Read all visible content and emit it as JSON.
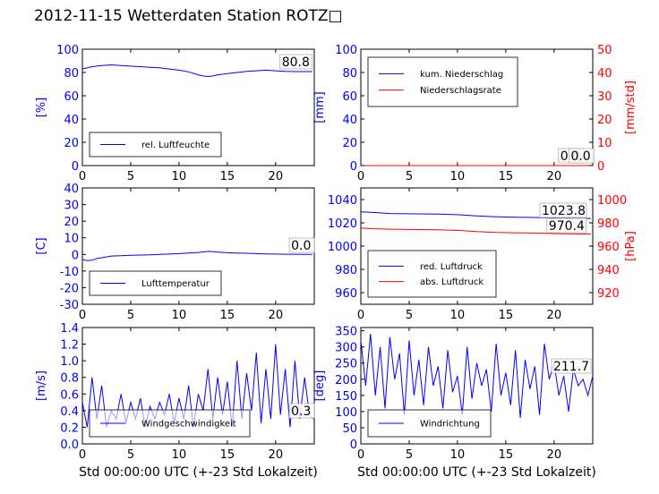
{
  "title": "2012-11-15 Wetterdaten Station ROTZ□",
  "colors": {
    "primary": "#0000ff",
    "secondary": "#ff0000",
    "axis": "#000000"
  },
  "chart_data": [
    {
      "type": "line",
      "ylabel": "[%]",
      "xlim": [
        0,
        24
      ],
      "ylim": [
        0,
        100
      ],
      "xticks": [
        0,
        5,
        10,
        15,
        20
      ],
      "yticks": [
        0,
        20,
        40,
        60,
        80,
        100
      ],
      "xlabel": "",
      "value_box": "80.8",
      "legend": {
        "placement": "lower-left",
        "entries": [
          "rel. Luftfeuchte"
        ]
      },
      "series": [
        {
          "name": "rel. Luftfeuchte",
          "color": "#0000ff",
          "x": [
            0,
            1,
            2,
            3,
            4,
            5,
            6,
            7,
            8,
            9,
            10,
            11,
            12,
            12.5,
            13,
            13.5,
            14,
            15,
            16,
            17,
            18,
            19,
            20,
            21,
            22,
            23,
            23.8
          ],
          "y": [
            83,
            85,
            86,
            86.5,
            86,
            85.5,
            85,
            84.5,
            84,
            83,
            82,
            80.5,
            78,
            77,
            76.5,
            77,
            78,
            79,
            80,
            81,
            81.5,
            82,
            81.5,
            81,
            80.8,
            80.8,
            80.8
          ]
        }
      ]
    },
    {
      "type": "line",
      "ylabel": "[mm]",
      "y2label": "[mm/std]",
      "xlim": [
        0,
        24
      ],
      "ylim": [
        0,
        100
      ],
      "y2lim": [
        0,
        50
      ],
      "xticks": [
        0,
        5,
        10,
        15,
        20
      ],
      "yticks": [
        0,
        20,
        40,
        60,
        80,
        100
      ],
      "y2ticks": [
        0,
        10,
        20,
        30,
        40,
        50
      ],
      "xlabel": "",
      "value_box": "0.0",
      "value_box2": "0.0",
      "legend": {
        "placement": "upper-left",
        "entries": [
          "kum. Niederschlag",
          "Niederschlagsrate"
        ]
      },
      "series": [
        {
          "name": "kum. Niederschlag",
          "color": "#0000ff",
          "axis": "left",
          "x": [
            0,
            24
          ],
          "y": [
            0,
            0
          ]
        },
        {
          "name": "Niederschlagsrate",
          "color": "#ff0000",
          "axis": "right",
          "x": [
            0,
            24
          ],
          "y": [
            0,
            0
          ]
        }
      ]
    },
    {
      "type": "line",
      "ylabel": "[C]",
      "xlim": [
        0,
        24
      ],
      "ylim": [
        -30,
        40
      ],
      "xticks": [
        0,
        5,
        10,
        15,
        20
      ],
      "yticks": [
        -30,
        -20,
        -10,
        0,
        10,
        20,
        30,
        40
      ],
      "xlabel": "",
      "value_box": "0.0",
      "legend": {
        "placement": "lower-left",
        "entries": [
          "Lufttemperatur"
        ]
      },
      "series": [
        {
          "name": "Lufttemperatur",
          "color": "#0000ff",
          "x": [
            0,
            0.5,
            1,
            1.5,
            2,
            3,
            4,
            5,
            6,
            7,
            8,
            9,
            10,
            11,
            12,
            13,
            13.5,
            14,
            15,
            16,
            17,
            18,
            19,
            20,
            21,
            22,
            23,
            23.8
          ],
          "y": [
            -3,
            -3.8,
            -3.5,
            -2.5,
            -2,
            -1,
            -0.8,
            -0.5,
            -0.4,
            -0.3,
            0,
            0.2,
            0.5,
            0.8,
            1.2,
            1.8,
            1.7,
            1.4,
            1,
            0.8,
            0.7,
            0.5,
            0.3,
            0.2,
            0.1,
            0.1,
            0,
            0
          ]
        }
      ]
    },
    {
      "type": "line",
      "y2label": "[hPa]",
      "xlim": [
        0,
        24
      ],
      "ylim": [
        950,
        1050
      ],
      "y2lim": [
        910,
        1010
      ],
      "xticks": [
        0,
        5,
        10,
        15,
        20
      ],
      "yticks": [
        960,
        980,
        1000,
        1020,
        1040
      ],
      "y2ticks": [
        920,
        940,
        960,
        980,
        1000
      ],
      "xlabel": "",
      "value_box": "1023.8",
      "value_box2": "970.4",
      "legend": {
        "placement": "lower-left",
        "entries": [
          "red. Luftdruck",
          "abs. Luftdruck"
        ]
      },
      "series": [
        {
          "name": "red. Luftdruck",
          "color": "#0000ff",
          "axis": "left",
          "x": [
            0,
            1,
            2,
            3,
            5,
            8,
            10,
            12,
            14,
            16,
            18,
            20,
            22,
            23.8
          ],
          "y": [
            1029.5,
            1029,
            1028.5,
            1028,
            1027.8,
            1027.5,
            1027,
            1026,
            1025.2,
            1024.8,
            1024.6,
            1024.2,
            1023.9,
            1023.8
          ]
        },
        {
          "name": "abs. Luftdruck",
          "color": "#ff0000",
          "axis": "right",
          "x": [
            0,
            1,
            2,
            3,
            5,
            8,
            10,
            12,
            14,
            16,
            18,
            20,
            22,
            23.8
          ],
          "y": [
            975.5,
            975,
            974.8,
            974.5,
            974.3,
            974,
            973.5,
            972.5,
            971.8,
            971.5,
            971.2,
            970.8,
            970.5,
            970.4
          ]
        }
      ]
    },
    {
      "type": "line",
      "ylabel": "[m/s]",
      "xlim": [
        0,
        24
      ],
      "ylim": [
        0,
        1.4
      ],
      "xticks": [
        0,
        5,
        10,
        15,
        20
      ],
      "yticks": [
        0.0,
        0.2,
        0.4,
        0.6,
        0.8,
        1.0,
        1.2,
        1.4
      ],
      "xlabel": "Std 00:00:00 UTC (+-23 Std Lokalzeit)",
      "value_box": "0.3",
      "legend": {
        "placement": "lower-left",
        "entries": [
          "Windgeschwindigkeit"
        ]
      },
      "series": [
        {
          "name": "Windgeschwindigkeit",
          "color": "#0000ff",
          "x": [
            0,
            0.5,
            1,
            1.5,
            2,
            2.5,
            3,
            3.5,
            4,
            4.5,
            5,
            5.5,
            6,
            6.5,
            7,
            7.5,
            8,
            8.5,
            9,
            9.5,
            10,
            10.5,
            11,
            11.5,
            12,
            12.5,
            13,
            13.5,
            14,
            14.5,
            15,
            15.5,
            16,
            16.5,
            17,
            17.5,
            18,
            18.5,
            19,
            19.5,
            20,
            20.5,
            21,
            21.5,
            22,
            22.5,
            23,
            23.5,
            24
          ],
          "y": [
            0.5,
            0.2,
            0.8,
            0.3,
            0.7,
            0.2,
            0.4,
            0.3,
            0.6,
            0.25,
            0.5,
            0.3,
            0.55,
            0.2,
            0.45,
            0.3,
            0.5,
            0.35,
            0.6,
            0.25,
            0.55,
            0.3,
            0.7,
            0.2,
            0.6,
            0.4,
            0.9,
            0.3,
            0.8,
            0.35,
            0.75,
            0.2,
            1.0,
            0.3,
            0.85,
            0.4,
            1.1,
            0.25,
            0.9,
            0.3,
            1.2,
            0.35,
            0.9,
            0.2,
            1.0,
            0.3,
            0.8,
            0.35,
            0.3
          ]
        }
      ]
    },
    {
      "type": "line",
      "ylabel": "[deg]",
      "xlim": [
        0,
        24
      ],
      "ylim": [
        0,
        360
      ],
      "xticks": [
        0,
        5,
        10,
        15,
        20
      ],
      "yticks": [
        0,
        50,
        100,
        150,
        200,
        250,
        300,
        350
      ],
      "xlabel": "Std 00:00:00 UTC (+-23 Std Lokalzeit)",
      "value_box": "211.7",
      "legend": {
        "placement": "lower-left",
        "entries": [
          "Windrichtung"
        ]
      },
      "series": [
        {
          "name": "Windrichtung",
          "color": "#0000ff",
          "x": [
            0,
            0.5,
            1,
            1.5,
            2,
            2.5,
            3,
            3.5,
            4,
            4.5,
            5,
            5.5,
            6,
            6.5,
            7,
            7.5,
            8,
            8.5,
            9,
            9.5,
            10,
            10.5,
            11,
            11.5,
            12,
            12.5,
            13,
            13.5,
            14,
            14.5,
            15,
            15.5,
            16,
            16.5,
            17,
            17.5,
            18,
            18.5,
            19,
            19.5,
            20,
            20.5,
            21,
            21.5,
            22,
            22.5,
            23,
            23.5,
            24
          ],
          "y": [
            320,
            180,
            340,
            150,
            300,
            110,
            330,
            200,
            280,
            90,
            320,
            150,
            260,
            120,
            300,
            180,
            240,
            110,
            290,
            160,
            210,
            90,
            300,
            140,
            250,
            180,
            230,
            100,
            310,
            150,
            220,
            120,
            290,
            80,
            260,
            170,
            240,
            90,
            310,
            200,
            250,
            150,
            210,
            100,
            230,
            180,
            200,
            150,
            210
          ]
        }
      ]
    }
  ]
}
